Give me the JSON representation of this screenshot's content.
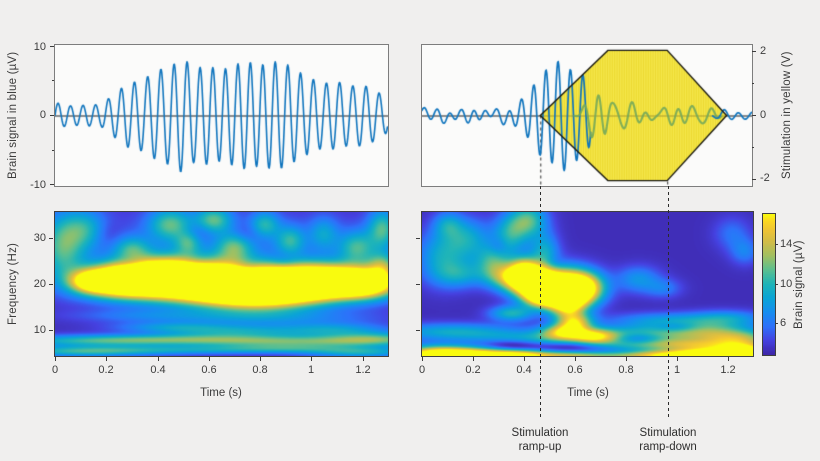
{
  "figure": {
    "bg": "#f0efee",
    "panel_bg": "#fbfbfa",
    "panel_border": "#7d7d7d",
    "text_color": "#3c3c3c",
    "dash_color": "#2b2b2b"
  },
  "colors": {
    "brain_blue": "#0f74bd",
    "brain_green": "#74a85a",
    "stim_yellow_fill": "#f5e74b",
    "stim_yellow_stripe": "#ecd932",
    "stim_outline": "#17170f",
    "zero_line": "#1a1a1a",
    "zero_line_in_stim": "#a89b2e"
  },
  "colormap": [
    [
      0.0,
      62,
      39,
      169
    ],
    [
      0.1,
      69,
      66,
      225
    ],
    [
      0.2,
      45,
      114,
      250
    ],
    [
      0.3,
      22,
      142,
      240
    ],
    [
      0.4,
      10,
      164,
      214
    ],
    [
      0.5,
      30,
      180,
      185
    ],
    [
      0.6,
      90,
      191,
      145
    ],
    [
      0.7,
      160,
      192,
      98
    ],
    [
      0.8,
      208,
      188,
      72
    ],
    [
      0.88,
      237,
      195,
      55
    ],
    [
      0.95,
      252,
      216,
      35
    ],
    [
      1.0,
      249,
      251,
      14
    ]
  ],
  "chart_data": {
    "type": "multi-panel-figure",
    "xlim": [
      0,
      1.3
    ],
    "xlabel": "Time (s)",
    "time_tick_values": [
      0,
      0.2,
      0.4,
      0.6,
      0.8,
      1,
      1.2
    ],
    "time_ticks": [
      "0",
      "0.2",
      "0.4",
      "0.6",
      "0.8",
      "1",
      "1.2"
    ],
    "panels": {
      "top_left": {
        "type": "line",
        "ylabel": "Brain signal in blue (µV)",
        "ylim": [
          -10.3,
          10.3
        ],
        "ytick_values": [
          10,
          0,
          -10
        ],
        "ytick_labels": [
          "10",
          "0",
          "-10"
        ],
        "signal": {
          "description": "20 Hz brain oscillation, amplitude-modulated",
          "trange": [
            0,
            1.3
          ],
          "carrier": [
            [
              20,
              1,
              0
            ]
          ],
          "noise": [],
          "phase_wobble": [
            0.5,
            1.3
          ],
          "envelope": [
            [
              0,
              1.9
            ],
            [
              0.06,
              1.4
            ],
            [
              0.12,
              1.5
            ],
            [
              0.18,
              1.6
            ],
            [
              0.22,
              2.8
            ],
            [
              0.28,
              4.6
            ],
            [
              0.34,
              5.2
            ],
            [
              0.4,
              6.6
            ],
            [
              0.46,
              7.4
            ],
            [
              0.5,
              8.5
            ],
            [
              0.54,
              6.9
            ],
            [
              0.6,
              7.2
            ],
            [
              0.65,
              6.6
            ],
            [
              0.7,
              7.4
            ],
            [
              0.75,
              7.9
            ],
            [
              0.8,
              7.3
            ],
            [
              0.85,
              7.9
            ],
            [
              0.9,
              7.6
            ],
            [
              0.95,
              6.4
            ],
            [
              1.0,
              5.4
            ],
            [
              1.05,
              4.7
            ],
            [
              1.1,
              5.0
            ],
            [
              1.15,
              4.3
            ],
            [
              1.2,
              4.5
            ],
            [
              1.25,
              3.7
            ],
            [
              1.3,
              2.4
            ]
          ]
        }
      },
      "top_right": {
        "type": "line",
        "ylabel": "Stimulation in yellow (V)",
        "ylim": [
          -2.22,
          2.22
        ],
        "ytick_values": [
          2,
          0,
          -2
        ],
        "ytick_labels": [
          "2",
          "0",
          "-2"
        ],
        "stimulation": {
          "ramp_up_start_s": 0.466,
          "plateau_start_s": 0.732,
          "plateau_end_s": 0.966,
          "ramp_down_end_s": 1.2,
          "amplitude_v": 2.05
        },
        "ramp_up_line_s": 0.466,
        "ramp_down_line_s": 0.966,
        "blue_pre": {
          "trange": [
            0,
            0.665
          ],
          "carrier": [
            [
              21,
              0.9,
              0
            ],
            [
              18.5,
              0.25,
              1.2
            ],
            [
              24.5,
              0.15,
              2.1
            ]
          ],
          "noise": [
            [
              8,
              0.06,
              0.5
            ],
            [
              13.5,
              0.05,
              2.0
            ],
            [
              4.5,
              0.04,
              1.0
            ]
          ],
          "phase_wobble": [
            0,
            1
          ],
          "envelope": [
            [
              0,
              0.14
            ],
            [
              0.08,
              0.18
            ],
            [
              0.15,
              0.12
            ],
            [
              0.22,
              0.2
            ],
            [
              0.28,
              0.18
            ],
            [
              0.32,
              0.3
            ],
            [
              0.38,
              0.5
            ],
            [
              0.44,
              0.75
            ],
            [
              0.5,
              1.2
            ],
            [
              0.55,
              1.7
            ],
            [
              0.6,
              2.05
            ],
            [
              0.63,
              2.15
            ],
            [
              0.665,
              1.85
            ]
          ]
        },
        "green_during": {
          "trange": [
            0.6,
            1.18
          ],
          "carrier": [
            [
              16,
              0.55,
              0.5
            ],
            [
              9.5,
              0.3,
              1.7
            ],
            [
              22,
              0.25,
              0.2
            ],
            [
              13,
              0.2,
              2.6
            ]
          ],
          "noise": [],
          "phase_wobble": [
            0,
            1
          ],
          "envelope": [
            [
              0.6,
              0.1
            ],
            [
              0.65,
              0.55
            ],
            [
              0.69,
              1.05
            ],
            [
              0.72,
              1.15
            ],
            [
              0.75,
              0.7
            ],
            [
              0.79,
              0.4
            ],
            [
              0.85,
              0.35
            ],
            [
              0.92,
              0.45
            ],
            [
              1.0,
              0.4
            ],
            [
              1.08,
              0.35
            ],
            [
              1.14,
              0.22
            ],
            [
              1.18,
              0.08
            ]
          ]
        },
        "blue_post": {
          "trange": [
            1.145,
            1.3
          ],
          "carrier": [
            [
              17,
              0.7,
              0.3
            ],
            [
              10,
              0.3,
              1.5
            ]
          ],
          "noise": [],
          "phase_wobble": [
            0,
            1
          ],
          "envelope": [
            [
              1.145,
              0.04
            ],
            [
              1.19,
              0.2
            ],
            [
              1.24,
              0.22
            ],
            [
              1.3,
              0.12
            ]
          ]
        }
      },
      "bottom_left": {
        "type": "heatmap",
        "ylabel": "Frequency (Hz)",
        "flim": [
          4.3,
          35.6
        ],
        "ytick_values": [
          30,
          20,
          10
        ],
        "ytick_labels": [
          "30",
          "20",
          "10"
        ],
        "base": 0.03,
        "blobs": [
          [
            0.13,
            20.5,
            0.05,
            1.6,
            0.5
          ],
          [
            0.22,
            20.5,
            0.1,
            2.2,
            1.05
          ],
          [
            0.35,
            21,
            0.12,
            2.6,
            1.15
          ],
          [
            0.5,
            21.5,
            0.13,
            2.8,
            1.25
          ],
          [
            0.65,
            19.5,
            0.13,
            2.6,
            1.15
          ],
          [
            0.8,
            19,
            0.13,
            2.8,
            1.25
          ],
          [
            0.95,
            20,
            0.12,
            2.6,
            1.15
          ],
          [
            1.1,
            20.5,
            0.12,
            2.4,
            1.05
          ],
          [
            1.22,
            20,
            0.09,
            2.2,
            0.95
          ],
          [
            0.5,
            20,
            0.3,
            5,
            0.15
          ],
          [
            0.9,
            19.5,
            0.25,
            5,
            0.15
          ],
          [
            0.03,
            28,
            0.06,
            5,
            0.5
          ],
          [
            0.12,
            32,
            0.06,
            3,
            0.35
          ],
          [
            0.3,
            27.5,
            0.05,
            2,
            0.4
          ],
          [
            0.45,
            33,
            0.06,
            2.5,
            0.5
          ],
          [
            0.52,
            29,
            0.035,
            1.8,
            0.35
          ],
          [
            0.62,
            34,
            0.05,
            2,
            0.5
          ],
          [
            0.7,
            28,
            0.05,
            2.2,
            0.45
          ],
          [
            0.82,
            33,
            0.04,
            2,
            0.4
          ],
          [
            0.92,
            29.5,
            0.04,
            2.2,
            0.4
          ],
          [
            1.05,
            31,
            0.04,
            2.5,
            0.3
          ],
          [
            1.18,
            28,
            0.05,
            2.5,
            0.45
          ],
          [
            1.28,
            32,
            0.04,
            3,
            0.5
          ],
          [
            1.28,
            24,
            0.04,
            2,
            0.45
          ],
          [
            0.65,
            30,
            0.6,
            6,
            0.1
          ],
          [
            0.15,
            7.5,
            0.25,
            0.9,
            0.4
          ],
          [
            0.55,
            7.8,
            0.3,
            0.8,
            0.35
          ],
          [
            0.95,
            7.2,
            0.3,
            0.9,
            0.4
          ],
          [
            1.25,
            8,
            0.15,
            1,
            0.45
          ],
          [
            0.1,
            5.2,
            0.2,
            0.8,
            0.45
          ],
          [
            0.5,
            5.5,
            0.25,
            0.7,
            0.3
          ],
          [
            0.9,
            5.8,
            0.2,
            0.7,
            0.3
          ],
          [
            1.2,
            5,
            0.15,
            0.8,
            0.4
          ],
          [
            0.7,
            9.5,
            0.2,
            1,
            0.35
          ],
          [
            0.45,
            10.5,
            0.15,
            0.8,
            0.25
          ],
          [
            0.85,
            12.5,
            0.3,
            1.2,
            0.18
          ],
          [
            0.35,
            13,
            0.2,
            1,
            0.15
          ],
          [
            1.1,
            10,
            0.15,
            1,
            0.3
          ],
          [
            0.3,
            24.5,
            0.04,
            1.5,
            -0.15
          ],
          [
            0.55,
            24.5,
            0.05,
            1.5,
            -0.15
          ],
          [
            0.75,
            23.5,
            0.04,
            1.2,
            -0.12
          ],
          [
            0.2,
            31,
            0.04,
            2,
            -0.1
          ],
          [
            0.55,
            31.5,
            0.04,
            1.5,
            -0.12
          ],
          [
            0.9,
            25,
            0.04,
            1.5,
            -0.12
          ],
          [
            0.75,
            31,
            0.04,
            1.5,
            -0.1
          ]
        ]
      },
      "bottom_right": {
        "type": "heatmap",
        "flim": [
          4.3,
          35.6
        ],
        "base": 0.03,
        "blobs": [
          [
            0.08,
            26,
            0.07,
            4,
            0.4
          ],
          [
            0.18,
            30,
            0.06,
            3,
            0.35
          ],
          [
            0.28,
            25,
            0.05,
            2.5,
            0.45
          ],
          [
            0.35,
            31,
            0.05,
            3,
            0.45
          ],
          [
            0.42,
            34,
            0.05,
            2.5,
            0.5
          ],
          [
            0.33,
            21.5,
            0.06,
            2,
            0.5
          ],
          [
            0.15,
            22,
            0.07,
            2,
            0.3
          ],
          [
            0.48,
            27,
            0.04,
            3,
            0.4
          ],
          [
            0.1,
            33,
            0.04,
            2,
            0.3
          ],
          [
            0.42,
            20.5,
            0.06,
            2.2,
            1.0
          ],
          [
            0.52,
            19.5,
            0.08,
            2.8,
            1.3
          ],
          [
            0.63,
            19,
            0.06,
            2.5,
            1.1
          ],
          [
            0.4,
            23,
            0.04,
            2,
            0.7
          ],
          [
            0.57,
            15.5,
            0.05,
            2,
            0.8
          ],
          [
            0.47,
            17,
            0.05,
            1.5,
            0.7
          ],
          [
            0.6,
            11.5,
            0.05,
            1.5,
            0.75
          ],
          [
            0.55,
            9.5,
            0.06,
            1.2,
            0.6
          ],
          [
            0.68,
            8.5,
            0.06,
            1.2,
            0.55
          ],
          [
            0.35,
            13.5,
            0.06,
            1.2,
            0.45
          ],
          [
            0.12,
            9.5,
            0.18,
            1.3,
            0.4
          ],
          [
            0.5,
            8,
            0.2,
            1.2,
            0.35
          ],
          [
            0.85,
            9,
            0.18,
            1.3,
            0.4
          ],
          [
            1.12,
            9.5,
            0.14,
            1.6,
            0.5
          ],
          [
            1.25,
            8,
            0.1,
            1.2,
            0.45
          ],
          [
            0.95,
            12,
            0.15,
            1.2,
            0.3
          ],
          [
            1.2,
            12.5,
            0.1,
            1.2,
            0.3
          ],
          [
            0.8,
            6.5,
            0.2,
            0.9,
            0.3
          ],
          [
            1.05,
            6.8,
            0.15,
            0.9,
            0.4
          ],
          [
            0.85,
            21,
            0.06,
            2,
            0.3
          ],
          [
            0.95,
            19,
            0.05,
            1.5,
            0.2
          ],
          [
            1.22,
            31,
            0.05,
            2.5,
            0.18
          ],
          [
            1.27,
            27,
            0.04,
            2,
            0.22
          ],
          [
            0.05,
            4.3,
            0.1,
            1.4,
            1.2
          ],
          [
            0.22,
            4.5,
            0.1,
            1.1,
            0.9
          ],
          [
            0.38,
            4.3,
            0.08,
            0.9,
            0.8
          ],
          [
            0.55,
            4.2,
            0.1,
            0.8,
            0.6
          ],
          [
            0.75,
            4.2,
            0.12,
            0.7,
            0.45
          ],
          [
            0.95,
            4.3,
            0.1,
            0.9,
            0.7
          ],
          [
            1.12,
            4.4,
            0.1,
            1.2,
            1.0
          ],
          [
            1.28,
            4.6,
            0.08,
            1.5,
            1.2
          ],
          [
            0.85,
            8,
            0.06,
            0.9,
            -0.25
          ],
          [
            0.6,
            6.3,
            0.1,
            0.8,
            -0.3
          ],
          [
            0.35,
            6.5,
            0.08,
            0.8,
            -0.25
          ],
          [
            1.0,
            10.5,
            0.06,
            0.8,
            -0.2
          ],
          [
            0.52,
            24.5,
            0.03,
            1.2,
            -0.12
          ],
          [
            0.3,
            28,
            0.025,
            1.5,
            -0.12
          ]
        ]
      }
    },
    "colorbar": {
      "label": "Brain signal (µV)",
      "tick_values": [
        14,
        10,
        6
      ],
      "tick_labels": [
        "14",
        "10",
        "6"
      ],
      "range_uv": [
        2.8,
        17
      ]
    },
    "annotations": {
      "ramp_up": {
        "line1": "Stimulation",
        "line2": "ramp-up"
      },
      "ramp_down": {
        "line1": "Stimulation",
        "line2": "ramp-down"
      }
    }
  }
}
